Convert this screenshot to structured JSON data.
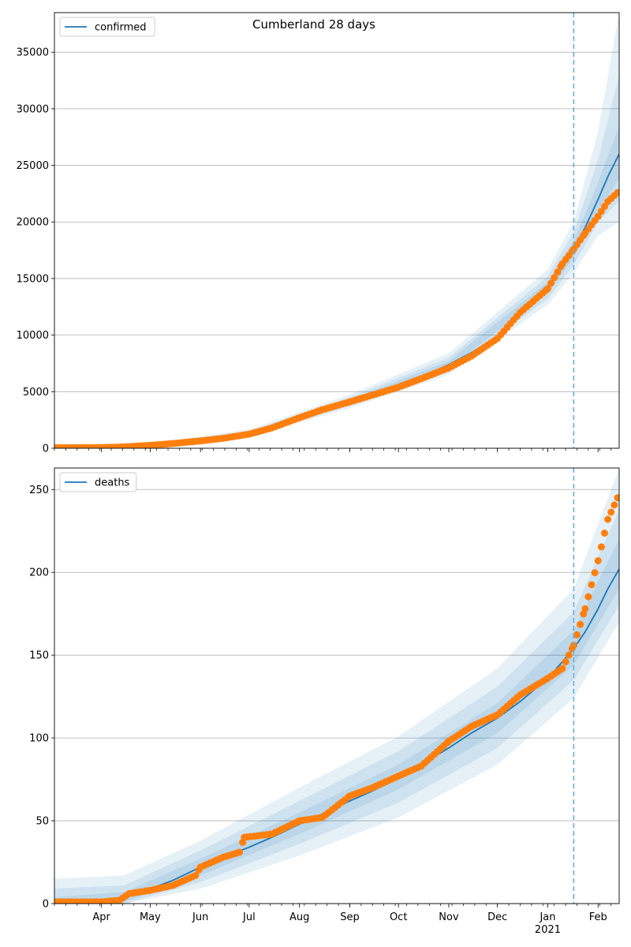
{
  "title": "Cumberland 28 days",
  "colors": {
    "model_line": "#1f77b4",
    "observed": "#ff7f0e",
    "band": "#1f77b4",
    "grid": "#b0b0b0",
    "forecast_marker": "#6baed6"
  },
  "chart_data": [
    {
      "type": "line",
      "legend": "confirmed",
      "legend_position": "top-left",
      "grid": "horizontal",
      "x_type": "date",
      "xlim": [
        "2020-03-03",
        "2021-02-14"
      ],
      "ylim": [
        0,
        38500
      ],
      "yticks": [
        0,
        5000,
        10000,
        15000,
        20000,
        25000,
        30000,
        35000
      ],
      "forecast_start": "2021-01-17",
      "model": [
        {
          "x": "2020-03-03",
          "y": 0
        },
        {
          "x": "2020-03-15",
          "y": 20
        },
        {
          "x": "2020-04-01",
          "y": 70
        },
        {
          "x": "2020-04-15",
          "y": 150
        },
        {
          "x": "2020-05-01",
          "y": 300
        },
        {
          "x": "2020-05-15",
          "y": 480
        },
        {
          "x": "2020-06-01",
          "y": 720
        },
        {
          "x": "2020-06-15",
          "y": 950
        },
        {
          "x": "2020-07-01",
          "y": 1300
        },
        {
          "x": "2020-07-15",
          "y": 1800
        },
        {
          "x": "2020-08-01",
          "y": 2700
        },
        {
          "x": "2020-08-15",
          "y": 3400
        },
        {
          "x": "2020-09-01",
          "y": 4100
        },
        {
          "x": "2020-09-15",
          "y": 4750
        },
        {
          "x": "2020-10-01",
          "y": 5500
        },
        {
          "x": "2020-10-15",
          "y": 6300
        },
        {
          "x": "2020-11-01",
          "y": 7400
        },
        {
          "x": "2020-11-15",
          "y": 8450
        },
        {
          "x": "2020-12-01",
          "y": 9900
        },
        {
          "x": "2020-12-15",
          "y": 11800
        },
        {
          "x": "2021-01-01",
          "y": 14200
        },
        {
          "x": "2021-01-10",
          "y": 16000
        },
        {
          "x": "2021-01-17",
          "y": 17600
        },
        {
          "x": "2021-01-24",
          "y": 19500
        },
        {
          "x": "2021-02-01",
          "y": 22000
        },
        {
          "x": "2021-02-07",
          "y": 24000
        },
        {
          "x": "2021-02-14",
          "y": 26000
        }
      ],
      "bands": [
        {
          "x": "2020-03-03",
          "lo": [
            0,
            0,
            0
          ],
          "hi": [
            40,
            90,
            200
          ]
        },
        {
          "x": "2020-05-01",
          "lo": [
            270,
            240,
            200
          ],
          "hi": [
            330,
            370,
            420
          ]
        },
        {
          "x": "2020-07-01",
          "lo": [
            1200,
            1100,
            1000
          ],
          "hi": [
            1400,
            1500,
            1650
          ]
        },
        {
          "x": "2020-09-01",
          "lo": [
            3900,
            3750,
            3550
          ],
          "hi": [
            4300,
            4500,
            4750
          ]
        },
        {
          "x": "2020-11-01",
          "lo": [
            7100,
            6800,
            6500
          ],
          "hi": [
            7700,
            8000,
            8400
          ]
        },
        {
          "x": "2021-01-01",
          "lo": [
            13700,
            13200,
            12700
          ],
          "hi": [
            14700,
            15200,
            15800
          ]
        },
        {
          "x": "2021-01-17",
          "lo": [
            16900,
            16200,
            15500
          ],
          "hi": [
            18300,
            19100,
            20000
          ]
        },
        {
          "x": "2021-02-01",
          "lo": [
            21000,
            20000,
            18800
          ],
          "hi": [
            23500,
            25500,
            28000
          ]
        },
        {
          "x": "2021-02-14",
          "lo": [
            23800,
            21800,
            20000
          ],
          "hi": [
            28500,
            33000,
            38500
          ]
        }
      ],
      "observed": [
        {
          "x": "2020-03-03",
          "y": 50
        },
        {
          "x": "2020-03-15",
          "y": 50
        },
        {
          "x": "2020-04-01",
          "y": 60
        },
        {
          "x": "2020-04-15",
          "y": 120
        },
        {
          "x": "2020-05-01",
          "y": 260
        },
        {
          "x": "2020-05-15",
          "y": 420
        },
        {
          "x": "2020-06-01",
          "y": 650
        },
        {
          "x": "2020-06-15",
          "y": 880
        },
        {
          "x": "2020-07-01",
          "y": 1250
        },
        {
          "x": "2020-07-15",
          "y": 1800
        },
        {
          "x": "2020-08-01",
          "y": 2700
        },
        {
          "x": "2020-08-15",
          "y": 3400
        },
        {
          "x": "2020-09-01",
          "y": 4100
        },
        {
          "x": "2020-09-15",
          "y": 4700
        },
        {
          "x": "2020-10-01",
          "y": 5400
        },
        {
          "x": "2020-10-15",
          "y": 6150
        },
        {
          "x": "2020-11-01",
          "y": 7100
        },
        {
          "x": "2020-11-15",
          "y": 8150
        },
        {
          "x": "2020-12-01",
          "y": 9700
        },
        {
          "x": "2020-12-15",
          "y": 12000
        },
        {
          "x": "2021-01-01",
          "y": 14100
        },
        {
          "x": "2021-01-10",
          "y": 16300
        },
        {
          "x": "2021-01-17",
          "y": 17600
        },
        {
          "x": "2021-01-24",
          "y": 19000
        },
        {
          "x": "2021-02-01",
          "y": 20500
        },
        {
          "x": "2021-02-07",
          "y": 21800
        },
        {
          "x": "2021-02-13",
          "y": 22600
        }
      ]
    },
    {
      "type": "line",
      "legend": "deaths",
      "legend_position": "top-left",
      "grid": "horizontal",
      "x_type": "date",
      "xlim": [
        "2020-03-03",
        "2021-02-14"
      ],
      "ylim": [
        0,
        263
      ],
      "yticks": [
        0,
        50,
        100,
        150,
        200,
        250
      ],
      "forecast_start": "2021-01-17",
      "model": [
        {
          "x": "2020-03-03",
          "y": 0
        },
        {
          "x": "2020-04-01",
          "y": 1
        },
        {
          "x": "2020-04-15",
          "y": 4
        },
        {
          "x": "2020-05-01",
          "y": 9
        },
        {
          "x": "2020-05-15",
          "y": 14
        },
        {
          "x": "2020-06-01",
          "y": 22
        },
        {
          "x": "2020-06-15",
          "y": 28
        },
        {
          "x": "2020-07-01",
          "y": 34
        },
        {
          "x": "2020-07-15",
          "y": 40
        },
        {
          "x": "2020-08-01",
          "y": 48
        },
        {
          "x": "2020-08-15",
          "y": 54
        },
        {
          "x": "2020-09-01",
          "y": 62
        },
        {
          "x": "2020-09-15",
          "y": 68
        },
        {
          "x": "2020-10-01",
          "y": 76
        },
        {
          "x": "2020-10-15",
          "y": 84
        },
        {
          "x": "2020-11-01",
          "y": 94
        },
        {
          "x": "2020-11-15",
          "y": 103
        },
        {
          "x": "2020-12-01",
          "y": 112
        },
        {
          "x": "2020-12-15",
          "y": 122
        },
        {
          "x": "2021-01-01",
          "y": 136
        },
        {
          "x": "2021-01-10",
          "y": 146
        },
        {
          "x": "2021-01-17",
          "y": 154
        },
        {
          "x": "2021-01-24",
          "y": 164
        },
        {
          "x": "2021-02-01",
          "y": 178
        },
        {
          "x": "2021-02-07",
          "y": 190
        },
        {
          "x": "2021-02-14",
          "y": 202
        }
      ],
      "bands": [
        {
          "x": "2020-03-03",
          "lo": [
            0,
            0,
            0
          ],
          "hi": [
            4,
            9,
            15
          ]
        },
        {
          "x": "2020-04-15",
          "lo": [
            1,
            0,
            0
          ],
          "hi": [
            7,
            11,
            17
          ]
        },
        {
          "x": "2020-06-01",
          "lo": [
            17,
            13,
            9
          ],
          "hi": [
            27,
            32,
            38
          ]
        },
        {
          "x": "2020-08-01",
          "lo": [
            42,
            36,
            29
          ],
          "hi": [
            55,
            62,
            70
          ]
        },
        {
          "x": "2020-10-01",
          "lo": [
            69,
            61,
            52
          ],
          "hi": [
            84,
            92,
            101
          ]
        },
        {
          "x": "2020-12-01",
          "lo": [
            103,
            94,
            84
          ],
          "hi": [
            121,
            131,
            142
          ]
        },
        {
          "x": "2021-01-17",
          "lo": [
            144,
            135,
            124
          ],
          "hi": [
            165,
            176,
            190
          ]
        },
        {
          "x": "2021-02-14",
          "lo": [
            190,
            180,
            170
          ],
          "hi": [
            220,
            238,
            263
          ]
        }
      ],
      "observed": [
        {
          "x": "2020-03-03",
          "y": 1
        },
        {
          "x": "2020-04-01",
          "y": 1
        },
        {
          "x": "2020-04-12",
          "y": 2
        },
        {
          "x": "2020-04-18",
          "y": 6
        },
        {
          "x": "2020-05-01",
          "y": 8
        },
        {
          "x": "2020-05-15",
          "y": 11
        },
        {
          "x": "2020-05-29",
          "y": 17
        },
        {
          "x": "2020-06-01",
          "y": 22
        },
        {
          "x": "2020-06-15",
          "y": 28
        },
        {
          "x": "2020-06-25",
          "y": 31
        },
        {
          "x": "2020-06-28",
          "y": 40
        },
        {
          "x": "2020-07-15",
          "y": 42
        },
        {
          "x": "2020-08-01",
          "y": 50
        },
        {
          "x": "2020-08-15",
          "y": 52
        },
        {
          "x": "2020-09-01",
          "y": 65
        },
        {
          "x": "2020-09-15",
          "y": 70
        },
        {
          "x": "2020-10-01",
          "y": 77
        },
        {
          "x": "2020-10-15",
          "y": 83
        },
        {
          "x": "2020-11-01",
          "y": 98
        },
        {
          "x": "2020-11-15",
          "y": 107
        },
        {
          "x": "2020-12-01",
          "y": 114
        },
        {
          "x": "2020-12-15",
          "y": 126
        },
        {
          "x": "2021-01-01",
          "y": 136
        },
        {
          "x": "2021-01-10",
          "y": 142
        },
        {
          "x": "2021-01-17",
          "y": 156
        },
        {
          "x": "2021-01-24",
          "y": 178
        },
        {
          "x": "2021-02-01",
          "y": 207
        },
        {
          "x": "2021-02-07",
          "y": 232
        },
        {
          "x": "2021-02-13",
          "y": 245
        }
      ]
    }
  ],
  "x_axis": {
    "month_labels": [
      {
        "date": "2020-04-01",
        "label": "Apr"
      },
      {
        "date": "2020-05-01",
        "label": "May"
      },
      {
        "date": "2020-06-01",
        "label": "Jun"
      },
      {
        "date": "2020-07-01",
        "label": "Jul"
      },
      {
        "date": "2020-08-01",
        "label": "Aug"
      },
      {
        "date": "2020-09-01",
        "label": "Sep"
      },
      {
        "date": "2020-10-01",
        "label": "Oct"
      },
      {
        "date": "2020-11-01",
        "label": "Nov"
      },
      {
        "date": "2020-12-01",
        "label": "Dec"
      },
      {
        "date": "2021-01-01",
        "label": "Jan"
      },
      {
        "date": "2021-02-01",
        "label": "Feb"
      }
    ],
    "year_label": {
      "date": "2021-01-01",
      "label": "2021"
    }
  }
}
